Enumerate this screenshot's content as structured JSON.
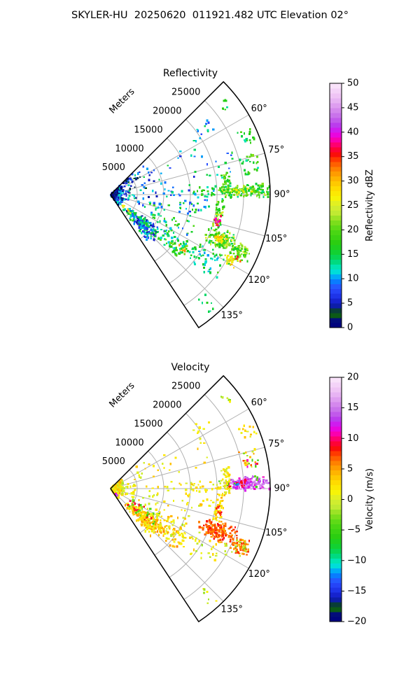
{
  "figure": {
    "title": "SKYLER-HU  20250620  011921.482 UTC Elevation 02°",
    "background": "#ffffff",
    "text_color": "#000000",
    "grid_color": "#b0b0b0",
    "outline_color": "#000000"
  },
  "colormap": {
    "description": "gist_ncar-style radar rainbow (shared by both panels)",
    "stops": [
      [
        0.0,
        "#000080"
      ],
      [
        0.038,
        "#041178"
      ],
      [
        0.05,
        "#0c5a16"
      ],
      [
        0.066,
        "#0a4a14"
      ],
      [
        0.08,
        "#081c92"
      ],
      [
        0.105,
        "#141fc8"
      ],
      [
        0.135,
        "#2038ee"
      ],
      [
        0.165,
        "#2b50ff"
      ],
      [
        0.19,
        "#0a7cff"
      ],
      [
        0.212,
        "#00b0f6"
      ],
      [
        0.228,
        "#00dcdc"
      ],
      [
        0.245,
        "#00e6c0"
      ],
      [
        0.27,
        "#00da80"
      ],
      [
        0.3,
        "#0cd23c"
      ],
      [
        0.345,
        "#27cd11"
      ],
      [
        0.4,
        "#50d813"
      ],
      [
        0.44,
        "#8ae01e"
      ],
      [
        0.47,
        "#c0ea32"
      ],
      [
        0.5,
        "#d8ee2e"
      ],
      [
        0.53,
        "#f6f408"
      ],
      [
        0.56,
        "#ffe400"
      ],
      [
        0.6,
        "#ffc000"
      ],
      [
        0.63,
        "#ff9c00"
      ],
      [
        0.66,
        "#ff7300"
      ],
      [
        0.69,
        "#ff3a00"
      ],
      [
        0.71,
        "#fa0f0a"
      ],
      [
        0.735,
        "#ff0040"
      ],
      [
        0.76,
        "#ff0090"
      ],
      [
        0.78,
        "#f400cc"
      ],
      [
        0.8,
        "#dd0cf0"
      ],
      [
        0.825,
        "#b935ee"
      ],
      [
        0.86,
        "#c468ea"
      ],
      [
        0.9,
        "#d993ee"
      ],
      [
        0.94,
        "#ecbdf4"
      ],
      [
        1.0,
        "#fbe9fb"
      ]
    ]
  },
  "chart_data": [
    {
      "type": "radar-ppi-sector",
      "title": "Reflectivity",
      "radial_axis_label": "Meters",
      "radial_ticks_m": [
        5000,
        10000,
        15000,
        20000,
        25000
      ],
      "max_range_m": 30000,
      "azimuth_deg_span": [
        45,
        146.5
      ],
      "azimuth_ticks_deg": [
        60,
        75,
        90,
        105,
        120,
        135
      ],
      "colorbar": {
        "label": "Reflectivity dBZ",
        "min": 0,
        "max": 50,
        "ticks": [
          0,
          5,
          10,
          15,
          20,
          25,
          30,
          35,
          40,
          45,
          50
        ],
        "bands": 50
      },
      "echo_clusters": [
        {
          "az": [
            45.5,
            146
          ],
          "r": [
            0.15,
            2.6
          ],
          "n": 170,
          "v": [
            0,
            13
          ],
          "mode": "scatter"
        },
        {
          "az": [
            45.5,
            146
          ],
          "r": [
            0.2,
            1.2
          ],
          "n": 70,
          "v": [
            0,
            6
          ],
          "mode": "scatter"
        },
        {
          "az": [
            48,
            112
          ],
          "r": [
            2.6,
            9
          ],
          "n": 55,
          "v": [
            2,
            15
          ],
          "mode": "scatter"
        },
        {
          "az": [
            46,
            60
          ],
          "r": [
            3,
            6
          ],
          "n": 25,
          "v": [
            0,
            10
          ],
          "mode": "scatter"
        },
        {
          "az": [
            58,
            80
          ],
          "r": [
            9,
            20
          ],
          "n": 20,
          "v": [
            4,
            16
          ],
          "mode": "scatter"
        },
        {
          "az": [
            52,
            58
          ],
          "r": [
            18,
            23
          ],
          "n": 12,
          "v": [
            5,
            15
          ],
          "mode": "scatter"
        },
        {
          "az": [
            50,
            54
          ],
          "r": [
            26.5,
            28.5
          ],
          "n": 7,
          "v": [
            13,
            18
          ],
          "mode": "scatter"
        },
        {
          "az": [
            64,
            70
          ],
          "r": [
            26.5,
            29.4
          ],
          "n": 16,
          "v": [
            12,
            20
          ],
          "mode": "scatter"
        },
        {
          "az": [
            74,
            82
          ],
          "r": [
            25,
            28.6
          ],
          "n": 26,
          "v": [
            12,
            22
          ],
          "mode": "scatter"
        },
        {
          "az": [
            70,
            80
          ],
          "r": [
            20,
            24.5
          ],
          "n": 10,
          "v": [
            8,
            16
          ],
          "mode": "scatter"
        },
        {
          "az": [
            124,
            141
          ],
          "r": [
            4.5,
            12
          ],
          "n": 190,
          "v": [
            4,
            18
          ],
          "mode": "blob"
        },
        {
          "az": [
            123,
            133
          ],
          "r": [
            12,
            18
          ],
          "n": 60,
          "v": [
            10,
            22
          ],
          "mode": "scatter"
        },
        {
          "az": [
            126,
            130
          ],
          "r": [
            16,
            18.5
          ],
          "n": 5,
          "v": [
            28,
            33
          ],
          "mode": "scatter"
        },
        {
          "az": [
            128,
            134
          ],
          "r": [
            3,
            5.5
          ],
          "n": 8,
          "v": [
            25,
            31
          ],
          "mode": "scatter"
        },
        {
          "az": [
            119,
            130
          ],
          "r": [
            18,
            24
          ],
          "n": 25,
          "v": [
            10,
            18
          ],
          "mode": "scatter"
        },
        {
          "az": [
            100,
            126
          ],
          "r": [
            7,
            17
          ],
          "n": 60,
          "v": [
            6,
            20
          ],
          "mode": "scatter"
        },
        {
          "az": [
            86,
            91
          ],
          "r": [
            20,
            30
          ],
          "n": 150,
          "v": [
            13,
            24
          ],
          "mode": "blob"
        },
        {
          "az": [
            87,
            90
          ],
          "r": [
            21,
            27
          ],
          "n": 14,
          "v": [
            25,
            29
          ],
          "mode": "scatter"
        },
        {
          "az": [
            85,
            92
          ],
          "r": [
            15.5,
            20
          ],
          "n": 25,
          "v": [
            10,
            20
          ],
          "mode": "scatter"
        },
        {
          "az": [
            79,
            93
          ],
          "r": [
            21,
            22.6
          ],
          "n": 45,
          "v": [
            12,
            24
          ],
          "mode": "scatter"
        },
        {
          "az": [
            93,
            107
          ],
          "r": [
            20,
            21.5
          ],
          "n": 45,
          "v": [
            14,
            26
          ],
          "mode": "scatter"
        },
        {
          "az": [
            101,
            106.5
          ],
          "r": [
            20.1,
            21.2
          ],
          "n": 16,
          "v": [
            32,
            40
          ],
          "mode": "scatter"
        },
        {
          "az": [
            108,
            116
          ],
          "r": [
            20,
            25
          ],
          "n": 130,
          "v": [
            14,
            26
          ],
          "mode": "blob"
        },
        {
          "az": [
            110,
            114
          ],
          "r": [
            21,
            23.5
          ],
          "n": 25,
          "v": [
            26,
            31
          ],
          "mode": "blob"
        },
        {
          "az": [
            111,
            117
          ],
          "r": [
            25,
            28.4
          ],
          "n": 70,
          "v": [
            14,
            25
          ],
          "mode": "blob"
        },
        {
          "az": [
            117,
            120.5
          ],
          "r": [
            24.5,
            27
          ],
          "n": 30,
          "v": [
            24,
            31
          ],
          "mode": "blob"
        },
        {
          "az": [
            116,
            117.5
          ],
          "r": [
            26.5,
            27.5
          ],
          "n": 4,
          "v": [
            33,
            37
          ],
          "mode": "scatter"
        },
        {
          "az": [
            118,
            128
          ],
          "r": [
            17,
            27
          ],
          "n": 28,
          "v": [
            10,
            20
          ],
          "mode": "scatter"
        },
        {
          "az": [
            136,
            140
          ],
          "r": [
            25.5,
            29
          ],
          "n": 8,
          "v": [
            13,
            18
          ],
          "mode": "scatter"
        },
        {
          "az": [
            83,
            92
          ],
          "r": [
            10,
            15
          ],
          "n": 14,
          "v": [
            5,
            16
          ],
          "mode": "scatter"
        },
        {
          "az": [
            93,
            101
          ],
          "r": [
            13,
            19.5
          ],
          "n": 18,
          "v": [
            8,
            18
          ],
          "mode": "scatter"
        }
      ]
    },
    {
      "type": "radar-ppi-sector",
      "title": "Velocity",
      "radial_axis_label": "Meters",
      "radial_ticks_m": [
        5000,
        10000,
        15000,
        20000,
        25000
      ],
      "max_range_m": 30000,
      "azimuth_deg_span": [
        45,
        146.5
      ],
      "azimuth_ticks_deg": [
        60,
        75,
        90,
        105,
        120,
        135
      ],
      "colorbar": {
        "label": "Velocity (m/s)",
        "min": -20,
        "max": 20,
        "ticks": [
          -20,
          -15,
          -10,
          -5,
          0,
          5,
          10,
          15,
          20
        ],
        "bands": 50
      },
      "echo_clusters": [
        {
          "az": [
            45.5,
            146
          ],
          "r": [
            0.15,
            2.6
          ],
          "n": 160,
          "v": [
            -2,
            5
          ],
          "mode": "scatter"
        },
        {
          "az": [
            45.5,
            146
          ],
          "r": [
            0.2,
            1.2
          ],
          "n": 60,
          "v": [
            0,
            4
          ],
          "mode": "scatter"
        },
        {
          "az": [
            134,
            137
          ],
          "r": [
            1,
            2
          ],
          "n": 2,
          "v": [
            12,
            14
          ],
          "mode": "scatter"
        },
        {
          "az": [
            48,
            112
          ],
          "r": [
            2.6,
            9
          ],
          "n": 45,
          "v": [
            -1,
            4
          ],
          "mode": "scatter"
        },
        {
          "az": [
            58,
            80
          ],
          "r": [
            9,
            20
          ],
          "n": 16,
          "v": [
            0,
            4
          ],
          "mode": "scatter"
        },
        {
          "az": [
            52,
            58
          ],
          "r": [
            18,
            23
          ],
          "n": 8,
          "v": [
            0,
            3
          ],
          "mode": "scatter"
        },
        {
          "az": [
            50,
            54
          ],
          "r": [
            26.5,
            28.5
          ],
          "n": 6,
          "v": [
            -4,
            2
          ],
          "mode": "scatter"
        },
        {
          "az": [
            64,
            70
          ],
          "r": [
            26.5,
            29.4
          ],
          "n": 14,
          "v": [
            0,
            4
          ],
          "mode": "scatter"
        },
        {
          "az": [
            74,
            82
          ],
          "r": [
            25,
            28.6
          ],
          "n": 24,
          "v": [
            -5,
            8
          ],
          "mode": "scatter"
        },
        {
          "az": [
            78,
            81
          ],
          "r": [
            26,
            28
          ],
          "n": 3,
          "v": [
            11,
            14
          ],
          "mode": "scatter"
        },
        {
          "az": [
            124,
            141
          ],
          "r": [
            4.5,
            12
          ],
          "n": 200,
          "v": [
            0,
            6
          ],
          "mode": "blob"
        },
        {
          "az": [
            122,
            134
          ],
          "r": [
            10,
            17
          ],
          "n": 70,
          "v": [
            0,
            6
          ],
          "mode": "scatter"
        },
        {
          "az": [
            118,
            134
          ],
          "r": [
            4,
            10
          ],
          "n": 18,
          "v": [
            7,
            10
          ],
          "mode": "scatter"
        },
        {
          "az": [
            116,
            140
          ],
          "r": [
            4,
            12
          ],
          "n": 20,
          "v": [
            -6,
            -2
          ],
          "mode": "scatter"
        },
        {
          "az": [
            100,
            126
          ],
          "r": [
            7,
            17
          ],
          "n": 50,
          "v": [
            -1,
            5
          ],
          "mode": "scatter"
        },
        {
          "az": [
            85.5,
            90.5
          ],
          "r": [
            22,
            29.8
          ],
          "n": 180,
          "v": [
            11,
            17
          ],
          "mode": "blob"
        },
        {
          "az": [
            86,
            90
          ],
          "r": [
            21,
            26
          ],
          "n": 12,
          "v": [
            8,
            10
          ],
          "mode": "scatter"
        },
        {
          "az": [
            88,
            89
          ],
          "r": [
            23,
            24
          ],
          "n": 3,
          "v": [
            -13,
            -11
          ],
          "mode": "scatter"
        },
        {
          "az": [
            85,
            90
          ],
          "r": [
            20,
            28
          ],
          "n": 8,
          "v": [
            -6,
            -3
          ],
          "mode": "scatter"
        },
        {
          "az": [
            85,
            92
          ],
          "r": [
            15,
            22
          ],
          "n": 40,
          "v": [
            -1,
            4
          ],
          "mode": "scatter"
        },
        {
          "az": [
            79,
            93
          ],
          "r": [
            21,
            22.6
          ],
          "n": 40,
          "v": [
            -1,
            4
          ],
          "mode": "scatter"
        },
        {
          "az": [
            93,
            107
          ],
          "r": [
            20,
            21.5
          ],
          "n": 40,
          "v": [
            0,
            5
          ],
          "mode": "scatter"
        },
        {
          "az": [
            98,
            104
          ],
          "r": [
            20.1,
            21.4
          ],
          "n": 12,
          "v": [
            7,
            9
          ],
          "mode": "scatter"
        },
        {
          "az": [
            107,
            116
          ],
          "r": [
            18.5,
            25
          ],
          "n": 150,
          "v": [
            5,
            9
          ],
          "mode": "blob"
        },
        {
          "az": [
            111,
            117
          ],
          "r": [
            25,
            28.2
          ],
          "n": 60,
          "v": [
            4,
            8
          ],
          "mode": "blob"
        },
        {
          "az": [
            112,
            118
          ],
          "r": [
            25,
            28
          ],
          "n": 12,
          "v": [
            -4,
            -1
          ],
          "mode": "scatter"
        },
        {
          "az": [
            115,
            130
          ],
          "r": [
            14,
            25
          ],
          "n": 40,
          "v": [
            -2,
            4
          ],
          "mode": "scatter"
        },
        {
          "az": [
            136,
            140
          ],
          "r": [
            25.5,
            29
          ],
          "n": 7,
          "v": [
            -3,
            3
          ],
          "mode": "scatter"
        },
        {
          "az": [
            83,
            92
          ],
          "r": [
            10,
            15
          ],
          "n": 10,
          "v": [
            0,
            4
          ],
          "mode": "scatter"
        },
        {
          "az": [
            93,
            101
          ],
          "r": [
            13,
            19.5
          ],
          "n": 14,
          "v": [
            0,
            5
          ],
          "mode": "scatter"
        }
      ]
    }
  ]
}
